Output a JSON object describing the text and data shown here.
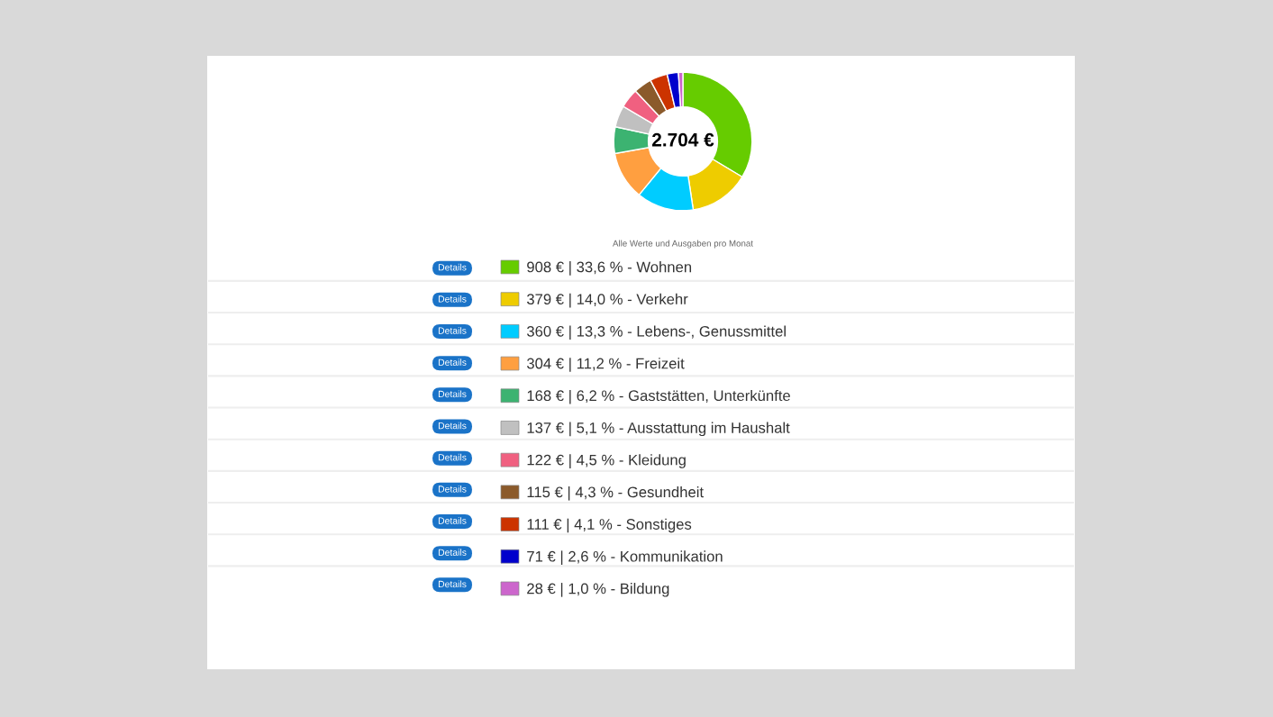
{
  "chart_data": {
    "type": "donut",
    "title": "2.704 €",
    "categories": [
      "Wohnen",
      "Verkehr",
      "Lebens-, Genussmittel",
      "Freizeit",
      "Gaststätten, Unterkünfte",
      "Ausstattung im Haushalt",
      "Kleidung",
      "Gesundheit",
      "Sonstiges",
      "Kommunikation",
      "Bildung"
    ],
    "values": [
      908,
      379,
      360,
      304,
      168,
      137,
      122,
      115,
      111,
      71,
      28
    ],
    "value_labels": [
      "908 € | 33,6 % -",
      "379 € | 14,0 % -",
      "360 € | 13,3 % -",
      "304 € | 11,2 % -",
      "168 € | 6,2 % -",
      "137 € | 5,1 % -",
      "122 € | 4,5 % -",
      "115 € | 4,3 % -",
      "111 € | 4,1 % -",
      "71 € | 2,6 % -",
      "28 € | 1,0 % -"
    ],
    "colors": [
      "#66cc00",
      "#eecc00",
      "#00ccff",
      "#ff9f40",
      "#3cb371",
      "#c0c0c0",
      "#f06080",
      "#8b5a2b",
      "#cc3300",
      "#0000cc",
      "#cc66cc"
    ],
    "legend": "bottom",
    "annotations": [
      "Alle Werte und Ausgaben pro Monat",
      "Details",
      "Details",
      "Details",
      "Details",
      "Details",
      "Details",
      "Details",
      "Details",
      "Details",
      "Details",
      "Details"
    ]
  }
}
